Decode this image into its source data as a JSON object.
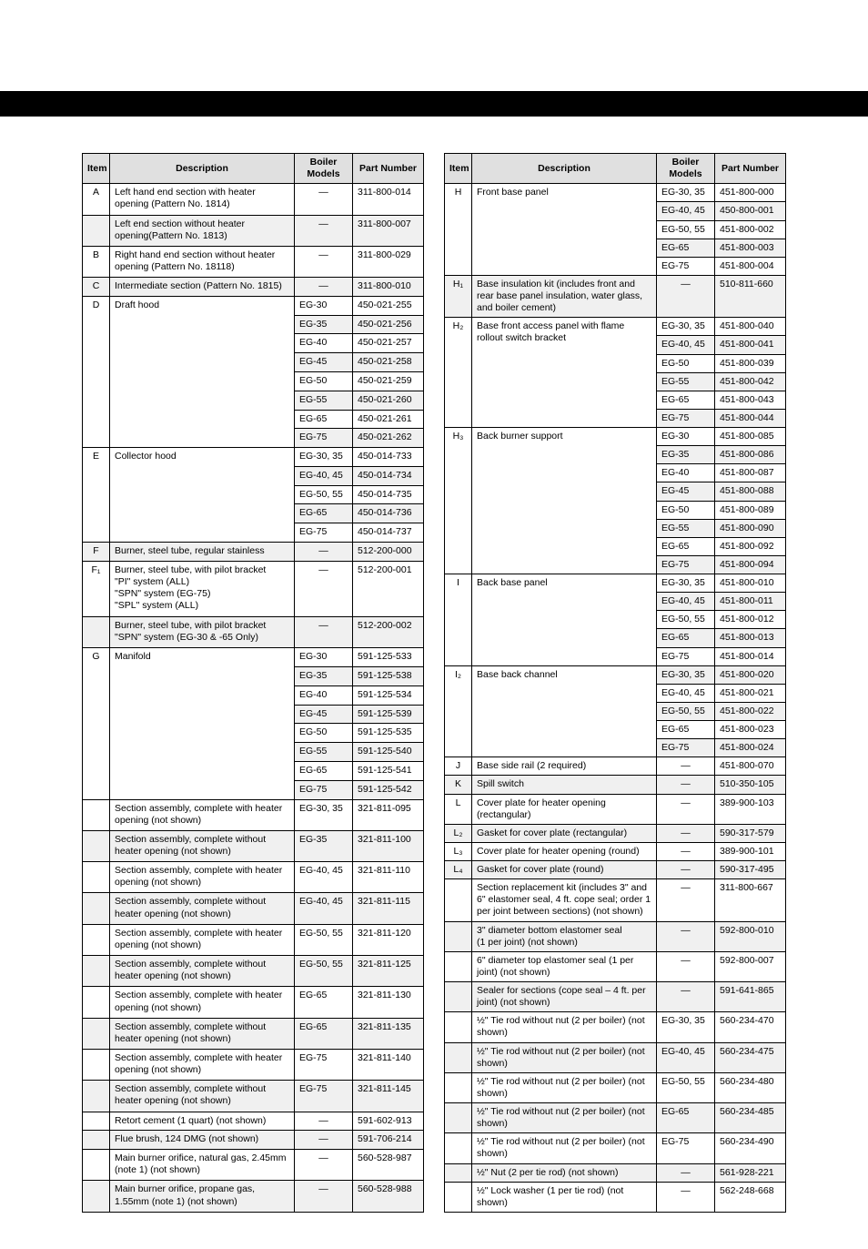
{
  "headers": {
    "item": "Item",
    "description": "Description",
    "models": "Boiler Models",
    "pn": "Part Number"
  },
  "left": [
    {
      "item": "A",
      "desc": "Left hand end section with heater opening (Pattern No. 1814)",
      "models": "—",
      "pn": "311-800-014"
    },
    {
      "item": "",
      "desc": "Left end section without heater opening(Pattern No. 1813)",
      "models": "—",
      "pn": "311-800-007",
      "shade": true
    },
    {
      "item": "B",
      "desc": "Right hand end section without heater opening (Pattern No. 18118)",
      "models": "—",
      "pn": "311-800-029"
    },
    {
      "item": "C",
      "desc": "Intermediate section (Pattern No. 1815)",
      "models": "—",
      "pn": "311-800-010",
      "shade": true
    },
    {
      "item": "D",
      "desc": "Draft hood",
      "rows": [
        {
          "models": "EG-30",
          "pn": "450-021-255"
        },
        {
          "models": "EG-35",
          "pn": "450-021-256",
          "shade": true
        },
        {
          "models": "EG-40",
          "pn": "450-021-257"
        },
        {
          "models": "EG-45",
          "pn": "450-021-258",
          "shade": true
        },
        {
          "models": "EG-50",
          "pn": "450-021-259"
        },
        {
          "models": "EG-55",
          "pn": "450-021-260",
          "shade": true
        },
        {
          "models": "EG-65",
          "pn": "450-021-261"
        },
        {
          "models": "EG-75",
          "pn": "450-021-262",
          "shade": true
        }
      ]
    },
    {
      "item": "E",
      "desc": "Collector hood",
      "rows": [
        {
          "models": "EG-30, 35",
          "pn": "450-014-733"
        },
        {
          "models": "EG-40, 45",
          "pn": "450-014-734",
          "shade": true
        },
        {
          "models": "EG-50, 55",
          "pn": "450-014-735"
        },
        {
          "models": "EG-65",
          "pn": "450-014-736",
          "shade": true
        },
        {
          "models": "EG-75",
          "pn": "450-014-737"
        }
      ]
    },
    {
      "item": "F",
      "desc": "Burner, steel tube, regular stainless",
      "models": "—",
      "pn": "512-200-000",
      "shade": true
    },
    {
      "item": "F₁",
      "desc": "Burner, steel tube, with pilot bracket\n\"PI\" system (ALL)\n\"SPN\" system (EG-75)\n\"SPL\" system (ALL)",
      "models": "—",
      "pn": "512-200-001"
    },
    {
      "item": "",
      "desc": "Burner, steel tube, with pilot bracket\n\"SPN\" system (EG-30 & -65 Only)",
      "models": "—",
      "pn": "512-200-002",
      "shade": true
    },
    {
      "item": "G",
      "desc": "Manifold",
      "rows": [
        {
          "models": "EG-30",
          "pn": "591-125-533"
        },
        {
          "models": "EG-35",
          "pn": "591-125-538",
          "shade": true
        },
        {
          "models": "EG-40",
          "pn": "591-125-534"
        },
        {
          "models": "EG-45",
          "pn": "591-125-539",
          "shade": true
        },
        {
          "models": "EG-50",
          "pn": "591-125-535"
        },
        {
          "models": "EG-55",
          "pn": "591-125-540",
          "shade": true
        },
        {
          "models": "EG-65",
          "pn": "591-125-541"
        },
        {
          "models": "EG-75",
          "pn": "591-125-542",
          "shade": true
        }
      ]
    },
    {
      "item": "",
      "desc": "Section assembly, complete with heater opening (not shown)",
      "models": "EG-30, 35",
      "pn": "321-811-095"
    },
    {
      "item": "",
      "desc": "Section assembly, complete without heater opening (not shown)",
      "models": "EG-35",
      "pn": "321-811-100",
      "shade": true
    },
    {
      "item": "",
      "desc": "Section assembly, complete with heater opening (not shown)",
      "models": "EG-40, 45",
      "pn": "321-811-110"
    },
    {
      "item": "",
      "desc": "Section assembly, complete without heater opening (not shown)",
      "models": "EG-40, 45",
      "pn": "321-811-115",
      "shade": true
    },
    {
      "item": "",
      "desc": "Section assembly, complete with heater opening (not shown)",
      "models": "EG-50, 55",
      "pn": "321-811-120"
    },
    {
      "item": "",
      "desc": "Section assembly, complete without heater opening (not shown)",
      "models": "EG-50, 55",
      "pn": "321-811-125",
      "shade": true
    },
    {
      "item": "",
      "desc": "Section assembly, complete with heater opening (not shown)",
      "models": "EG-65",
      "pn": "321-811-130"
    },
    {
      "item": "",
      "desc": "Section assembly, complete without heater opening (not shown)",
      "models": "EG-65",
      "pn": "321-811-135",
      "shade": true
    },
    {
      "item": "",
      "desc": "Section assembly, complete with heater opening (not shown)",
      "models": "EG-75",
      "pn": "321-811-140"
    },
    {
      "item": "",
      "desc": "Section assembly, complete without heater opening (not shown)",
      "models": "EG-75",
      "pn": "321-811-145",
      "shade": true
    },
    {
      "item": "",
      "desc": "Retort cement (1 quart) (not shown)",
      "models": "—",
      "pn": "591-602-913"
    },
    {
      "item": "",
      "desc": "Flue brush, 124 DMG (not shown)",
      "models": "—",
      "pn": "591-706-214",
      "shade": true
    },
    {
      "item": "",
      "desc": "Main burner orifice, natural gas, 2.45mm (note 1) (not shown)",
      "models": "—",
      "pn": "560-528-987"
    },
    {
      "item": "",
      "desc": "Main burner orifice, propane gas, 1.55mm (note 1) (not shown)",
      "models": "—",
      "pn": "560-528-988",
      "shade": true
    }
  ],
  "right": [
    {
      "item": "H",
      "desc": "Front base panel",
      "rows": [
        {
          "models": "EG-30, 35",
          "pn": "451-800-000"
        },
        {
          "models": "EG-40, 45",
          "pn": "450-800-001",
          "shade": true
        },
        {
          "models": "EG-50, 55",
          "pn": "451-800-002"
        },
        {
          "models": "EG-65",
          "pn": "451-800-003",
          "shade": true
        },
        {
          "models": "EG-75",
          "pn": "451-800-004"
        }
      ]
    },
    {
      "item": "H₁",
      "desc": "Base insulation kit (includes front and rear base panel insulation, water glass, and boiler cement)",
      "models": "—",
      "pn": "510-811-660",
      "shade": true
    },
    {
      "item": "H₂",
      "desc": "Base front access panel with flame rollout switch bracket",
      "rows": [
        {
          "models": "EG-30, 35",
          "pn": "451-800-040"
        },
        {
          "models": "EG-40, 45",
          "pn": "451-800-041",
          "shade": true
        },
        {
          "models": "EG-50",
          "pn": "451-800-039"
        },
        {
          "models": "EG-55",
          "pn": "451-800-042",
          "shade": true
        },
        {
          "models": "EG-65",
          "pn": "451-800-043"
        },
        {
          "models": "EG-75",
          "pn": "451-800-044",
          "shade": true
        }
      ]
    },
    {
      "item": "H₃",
      "desc": "Back burner support",
      "rows": [
        {
          "models": "EG-30",
          "pn": "451-800-085"
        },
        {
          "models": "EG-35",
          "pn": "451-800-086",
          "shade": true
        },
        {
          "models": "EG-40",
          "pn": "451-800-087"
        },
        {
          "models": "EG-45",
          "pn": "451-800-088",
          "shade": true
        },
        {
          "models": "EG-50",
          "pn": "451-800-089"
        },
        {
          "models": "EG-55",
          "pn": "451-800-090",
          "shade": true
        },
        {
          "models": "EG-65",
          "pn": "451-800-092"
        },
        {
          "models": "EG-75",
          "pn": "451-800-094",
          "shade": true
        }
      ]
    },
    {
      "item": "I",
      "desc": "Back base panel",
      "rows": [
        {
          "models": "EG-30, 35",
          "pn": "451-800-010"
        },
        {
          "models": "EG-40, 45",
          "pn": "451-800-011",
          "shade": true
        },
        {
          "models": "EG-50, 55",
          "pn": "451-800-012"
        },
        {
          "models": "EG-65",
          "pn": "451-800-013",
          "shade": true
        },
        {
          "models": "EG-75",
          "pn": "451-800-014"
        }
      ]
    },
    {
      "item": "I₂",
      "desc": "Base back channel",
      "rows": [
        {
          "models": "EG-30, 35",
          "pn": "451-800-020",
          "shade": true
        },
        {
          "models": "EG-40, 45",
          "pn": "451-800-021"
        },
        {
          "models": "EG-50, 55",
          "pn": "451-800-022",
          "shade": true
        },
        {
          "models": "EG-65",
          "pn": "451-800-023"
        },
        {
          "models": "EG-75",
          "pn": "451-800-024",
          "shade": true
        }
      ]
    },
    {
      "item": "J",
      "desc": "Base side rail (2 required)",
      "models": "—",
      "pn": "451-800-070"
    },
    {
      "item": "K",
      "desc": "Spill switch",
      "models": "—",
      "pn": "510-350-105",
      "shade": true
    },
    {
      "item": "L",
      "desc": "Cover plate for heater opening (rectangular)",
      "models": "—",
      "pn": "389-900-103"
    },
    {
      "item": "L₂",
      "desc": "Gasket for cover plate (rectangular)",
      "models": "—",
      "pn": "590-317-579",
      "shade": true
    },
    {
      "item": "L₃",
      "desc": "Cover plate for heater opening (round)",
      "models": "—",
      "pn": "389-900-101"
    },
    {
      "item": "L₄",
      "desc": "Gasket for cover plate (round)",
      "models": "—",
      "pn": "590-317-495",
      "shade": true
    },
    {
      "item": "",
      "desc": "Section replacement kit (includes 3\" and 6\" elastomer seal, 4 ft. cope seal; order 1 per joint between sections) (not shown)",
      "models": "—",
      "pn": "311-800-667"
    },
    {
      "item": "",
      "desc": "3\" diameter bottom elastomer seal\n(1 per joint) (not shown)",
      "models": "—",
      "pn": "592-800-010",
      "shade": true
    },
    {
      "item": "",
      "desc": "6\" diameter top elastomer seal (1 per joint) (not shown)",
      "models": "—",
      "pn": "592-800-007"
    },
    {
      "item": "",
      "desc": "Sealer for sections (cope seal – 4 ft. per joint) (not shown)",
      "models": "—",
      "pn": "591-641-865",
      "shade": true
    },
    {
      "item": "",
      "desc": "½\" Tie rod without nut (2 per boiler) (not shown)",
      "models": "EG-30, 35",
      "pn": "560-234-470"
    },
    {
      "item": "",
      "desc": "½\" Tie rod without nut (2 per boiler) (not shown)",
      "models": "EG-40, 45",
      "pn": "560-234-475",
      "shade": true
    },
    {
      "item": "",
      "desc": "½\" Tie rod without nut (2 per boiler) (not shown)",
      "models": "EG-50, 55",
      "pn": "560-234-480"
    },
    {
      "item": "",
      "desc": "½\" Tie rod without nut (2 per boiler) (not shown)",
      "models": "EG-65",
      "pn": "560-234-485",
      "shade": true
    },
    {
      "item": "",
      "desc": "½\" Tie rod without nut (2 per boiler) (not shown)",
      "models": "EG-75",
      "pn": "560-234-490"
    },
    {
      "item": "",
      "desc": "½\" Nut (2 per tie rod) (not shown)",
      "models": "—",
      "pn": "561-928-221",
      "shade": true
    },
    {
      "item": "",
      "desc": "½\" Lock washer (1 per tie rod) (not shown)",
      "models": "—",
      "pn": "562-248-668"
    }
  ]
}
